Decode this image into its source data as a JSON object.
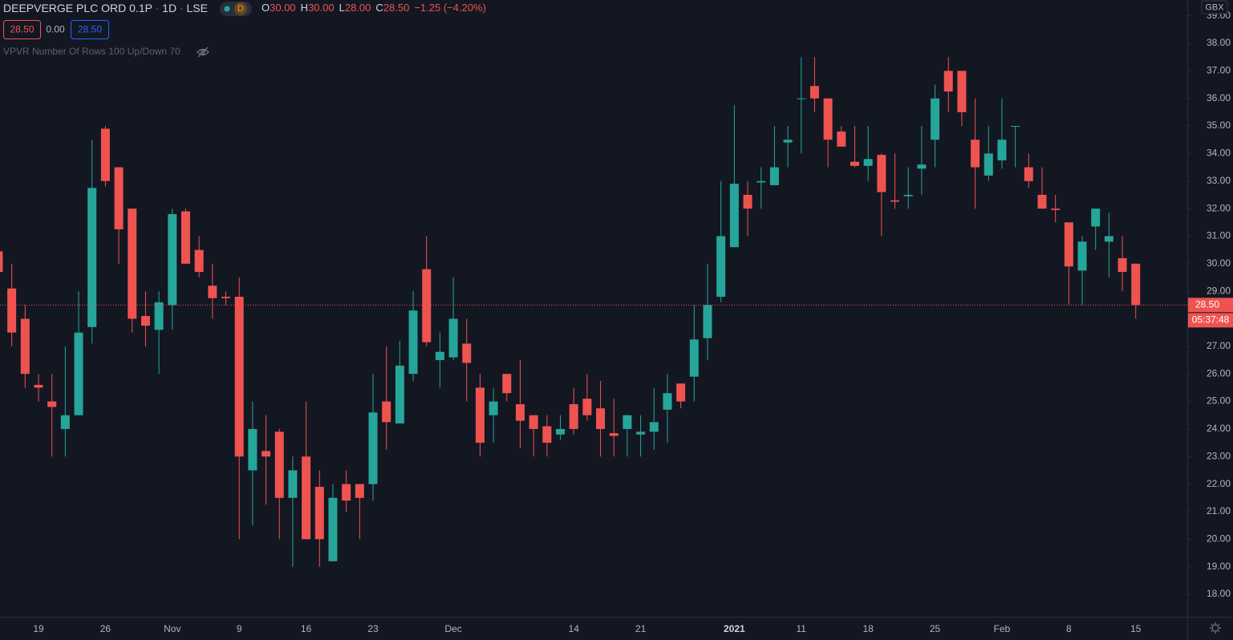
{
  "header": {
    "symbol": "DEEPVERGE PLC ORD 0.1P",
    "interval": "1D",
    "exchange": "LSE",
    "badge": "D",
    "ohlc": [
      {
        "key": "O",
        "value": "30.00"
      },
      {
        "key": "H",
        "value": "30.00"
      },
      {
        "key": "L",
        "value": "28.00"
      },
      {
        "key": "C",
        "value": "28.50"
      }
    ],
    "change": "−1.25 (−4.20%)",
    "buttons": [
      "28.50",
      "0.00",
      "28.50"
    ],
    "indicator": "VPVR Number Of Rows 100 Up/Down 70"
  },
  "chart_data": {
    "type": "candlestick",
    "currency": "GBX",
    "up_color": "#26a69a",
    "down_color": "#ef5350",
    "categories": [
      null,
      null,
      null,
      "19",
      null,
      null,
      null,
      null,
      "26",
      null,
      null,
      null,
      null,
      "Nov",
      null,
      null,
      null,
      null,
      "9",
      null,
      null,
      null,
      null,
      "16",
      null,
      null,
      null,
      null,
      "23",
      null,
      null,
      null,
      null,
      null,
      "Dec",
      null,
      null,
      null,
      null,
      null,
      null,
      null,
      null,
      "14",
      null,
      null,
      null,
      null,
      "21",
      null,
      null,
      null,
      null,
      null,
      null,
      "2021",
      null,
      null,
      null,
      null,
      "11",
      null,
      null,
      null,
      null,
      "18",
      null,
      null,
      null,
      null,
      "25",
      null,
      null,
      null,
      null,
      "Feb",
      null,
      null,
      null,
      null,
      "8",
      null,
      null,
      null,
      null,
      "15"
    ],
    "open": [
      30.45,
      29.1,
      28.0,
      25.6,
      25.0,
      24.0,
      24.5,
      27.7,
      34.9,
      33.5,
      32.0,
      28.1,
      27.6,
      28.5,
      31.9,
      30.5,
      29.2,
      28.8,
      28.8,
      22.5,
      23.2,
      23.9,
      21.5,
      23.0,
      21.9,
      19.2,
      22.0,
      22.0,
      22.0,
      25.0,
      24.2,
      26.0,
      29.8,
      26.5,
      26.6,
      27.1,
      25.5,
      24.5,
      26.0,
      24.9,
      24.5,
      24.1,
      23.8,
      24.9,
      25.1,
      24.75,
      23.85,
      24.0,
      23.8,
      23.9,
      24.7,
      25.65,
      25.9,
      27.3,
      28.8,
      30.6,
      32.5,
      32.95,
      32.85,
      34.4,
      35.98,
      36.45,
      36.0,
      34.8,
      33.7,
      33.55,
      33.95,
      32.3,
      32.45,
      33.45,
      34.5,
      37.0,
      37.0,
      34.5,
      33.2,
      33.75,
      34.98,
      33.5,
      32.5,
      32.0,
      31.5,
      29.75,
      31.35,
      30.8,
      30.2,
      30.0
    ],
    "high": [
      30.5,
      30.0,
      28.5,
      26.0,
      26.0,
      27.0,
      29.0,
      34.5,
      35.0,
      33.5,
      32.0,
      29.0,
      29.0,
      32.0,
      32.0,
      31.0,
      30.0,
      29.0,
      29.5,
      25.0,
      24.5,
      24.0,
      23.0,
      25.0,
      22.5,
      22.0,
      22.5,
      22.0,
      26.0,
      27.0,
      27.2,
      29.0,
      31.0,
      27.5,
      29.5,
      28.0,
      26.0,
      25.5,
      26.0,
      26.5,
      24.5,
      24.5,
      24.5,
      25.5,
      26.0,
      25.75,
      25.1,
      24.5,
      24.5,
      25.5,
      26.0,
      25.65,
      28.5,
      30.0,
      33.0,
      35.75,
      33.0,
      33.5,
      35.0,
      35.0,
      37.5,
      37.5,
      36.0,
      35.0,
      35.0,
      35.0,
      34.0,
      34.0,
      33.5,
      35.0,
      36.5,
      37.5,
      37.0,
      36.0,
      35.0,
      36.0,
      35.0,
      34.0,
      33.5,
      32.5,
      31.5,
      31.0,
      32.0,
      31.85,
      31.0,
      30.0
    ],
    "low": [
      29.5,
      27.0,
      25.5,
      25.0,
      23.0,
      23.0,
      24.5,
      27.1,
      32.8,
      30.0,
      27.5,
      27.0,
      26.0,
      27.6,
      30.0,
      29.5,
      28.0,
      28.5,
      20.0,
      20.5,
      21.25,
      20.0,
      19.0,
      20.0,
      19.0,
      19.2,
      21.0,
      20.0,
      21.4,
      23.25,
      24.2,
      25.75,
      27.0,
      25.5,
      26.5,
      25.0,
      23.0,
      23.5,
      25.0,
      23.3,
      23.0,
      23.0,
      23.6,
      23.8,
      24.3,
      23.0,
      23.0,
      23.0,
      23.0,
      23.25,
      23.5,
      24.75,
      25.0,
      26.5,
      28.6,
      30.6,
      31.0,
      32.0,
      32.85,
      33.5,
      34.0,
      35.5,
      33.5,
      34.25,
      33.5,
      33.0,
      31.0,
      32.0,
      32.0,
      32.5,
      33.5,
      35.5,
      35.0,
      32.0,
      33.0,
      33.45,
      33.5,
      32.75,
      32.0,
      31.5,
      28.5,
      28.5,
      30.5,
      29.5,
      29.0,
      28.0
    ],
    "close": [
      29.7,
      27.5,
      26.0,
      25.5,
      24.8,
      24.5,
      27.5,
      32.75,
      33.0,
      31.25,
      28.0,
      27.75,
      28.6,
      31.8,
      30.0,
      29.7,
      28.75,
      28.75,
      23.0,
      24.0,
      23.0,
      21.5,
      22.5,
      20.0,
      20.0,
      21.5,
      21.4,
      21.5,
      24.6,
      24.25,
      26.3,
      28.3,
      27.15,
      26.8,
      28.0,
      26.4,
      23.5,
      25.0,
      25.3,
      24.3,
      24.0,
      23.5,
      24.0,
      24.0,
      24.5,
      24.0,
      23.75,
      24.5,
      23.9,
      24.25,
      25.3,
      25.0,
      27.25,
      28.5,
      31.0,
      32.9,
      32.0,
      33.0,
      33.5,
      34.5,
      36.0,
      36.0,
      34.5,
      34.25,
      33.55,
      33.8,
      32.6,
      32.25,
      32.5,
      33.6,
      36.0,
      36.25,
      35.5,
      33.5,
      34.0,
      34.5,
      35.0,
      33.0,
      32.0,
      31.95,
      29.9,
      30.8,
      32.0,
      31.0,
      29.7,
      28.5
    ],
    "ylim": [
      17.185,
      39.572
    ],
    "yticks": [
      {
        "value": 18,
        "label": "18.00"
      },
      {
        "value": 19,
        "label": "19.00"
      },
      {
        "value": 20,
        "label": "20.00"
      },
      {
        "value": 21,
        "label": "21.00"
      },
      {
        "value": 22,
        "label": "22.00"
      },
      {
        "value": 23,
        "label": "23.00"
      },
      {
        "value": 24,
        "label": "24.00"
      },
      {
        "value": 25,
        "label": "25.00"
      },
      {
        "value": 26,
        "label": "26.00"
      },
      {
        "value": 27,
        "label": "27.00"
      },
      {
        "value": 29,
        "label": "29.00"
      },
      {
        "value": 30,
        "label": "30.00"
      },
      {
        "value": 31,
        "label": "31.00"
      },
      {
        "value": 32,
        "label": "32.00"
      },
      {
        "value": 33,
        "label": "33.00"
      },
      {
        "value": 34,
        "label": "34.00"
      },
      {
        "value": 35,
        "label": "35.00"
      },
      {
        "value": 36,
        "label": "36.00"
      },
      {
        "value": 37,
        "label": "37.00"
      },
      {
        "value": 38,
        "label": "38.00"
      },
      {
        "value": 39,
        "label": "39.00"
      }
    ],
    "last_price": {
      "value": 28.5,
      "label": "28.50"
    },
    "countdown": "05:37:48",
    "grid": false
  }
}
